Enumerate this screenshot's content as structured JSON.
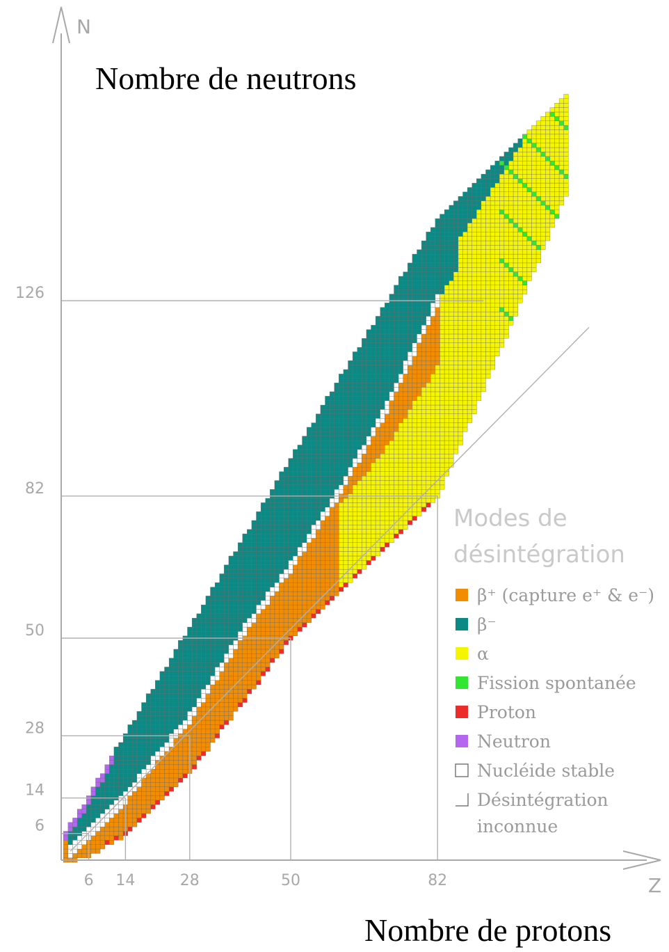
{
  "chart_data": {
    "type": "heatmap",
    "title": "",
    "xlabel": "Nombre de protons",
    "ylabel": "Nombre de neutrons",
    "x_axis_letter": "Z",
    "y_axis_letter": "N",
    "xlim": [
      0,
      112
    ],
    "ylim": [
      0,
      172
    ],
    "x_ticks": [
      6,
      14,
      28,
      50,
      82
    ],
    "y_ticks": [
      6,
      14,
      28,
      50,
      82,
      126
    ],
    "magic_lines": true,
    "diagonal_line": "N = Z",
    "legend": {
      "title_line1": "Modes de",
      "title_line2": "désintégration",
      "placement": "bottom-right",
      "items": [
        {
          "label": "β⁺ (capture e⁺ & e⁻)",
          "color": "#f28c00",
          "mode": "beta_plus"
        },
        {
          "label": "β⁻",
          "color": "#0b8a85",
          "mode": "beta_minus"
        },
        {
          "label": "α",
          "color": "#f5f500",
          "mode": "alpha"
        },
        {
          "label": "Fission spontanée",
          "color": "#33e633",
          "mode": "fission"
        },
        {
          "label": "Proton",
          "color": "#ee2b2b",
          "mode": "proton"
        },
        {
          "label": "Neutron",
          "color": "#b566f0",
          "mode": "neutron"
        },
        {
          "label": "Nucléide stable",
          "color": "#ffffff",
          "mode": "stable"
        },
        {
          "label": "Désintégration inconnue",
          "label_line1": "Désintégration",
          "label_line2": "inconnue",
          "color": "#ffffff",
          "mode": "unknown"
        }
      ]
    },
    "decay_regions": {
      "description_bands_N_by_Z": [
        {
          "Z": 1,
          "N_min": 0,
          "N_max": 6
        },
        {
          "Z": 6,
          "N_min": 1,
          "N_max": 14
        },
        {
          "Z": 14,
          "N_min": 6,
          "N_max": 28
        },
        {
          "Z": 28,
          "N_min": 20,
          "N_max": 52
        },
        {
          "Z": 50,
          "N_min": 50,
          "N_max": 90
        },
        {
          "Z": 82,
          "N_min": 82,
          "N_max": 144
        },
        {
          "Z": 110,
          "N_min": 150,
          "N_max": 172
        }
      ],
      "stable_valley_N_by_Z": [
        {
          "Z": 2,
          "N": 2
        },
        {
          "Z": 6,
          "N": 6
        },
        {
          "Z": 14,
          "N": 14
        },
        {
          "Z": 20,
          "N": 22
        },
        {
          "Z": 28,
          "N": 32
        },
        {
          "Z": 40,
          "N": 52
        },
        {
          "Z": 50,
          "N": 66
        },
        {
          "Z": 60,
          "N": 82
        },
        {
          "Z": 70,
          "N": 100
        },
        {
          "Z": 82,
          "N": 126
        }
      ]
    }
  }
}
